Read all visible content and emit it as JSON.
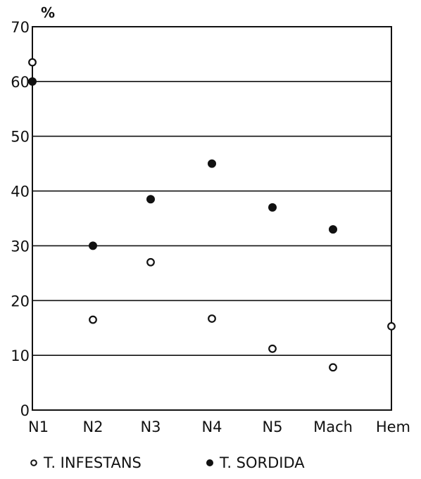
{
  "chart_data": {
    "type": "scatter",
    "y_unit": "%",
    "categories": [
      "N1",
      "N2",
      "N3",
      "N4",
      "N5",
      "Mach",
      "Hem"
    ],
    "ylim": [
      0,
      70
    ],
    "yticks": [
      "0",
      "10",
      "20",
      "30",
      "40",
      "50",
      "60",
      "70"
    ],
    "grid": true,
    "legend_position": "bottom",
    "series": [
      {
        "name": "T. INFESTANS",
        "marker": "open-circle",
        "color": "#111111",
        "values": [
          63.5,
          16.5,
          27,
          16.7,
          11.2,
          7.8,
          15.3
        ]
      },
      {
        "name": "T. SORDIDA",
        "marker": "filled-circle",
        "color": "#111111",
        "values": [
          60,
          30,
          38.5,
          45,
          37,
          33,
          null
        ]
      }
    ]
  }
}
